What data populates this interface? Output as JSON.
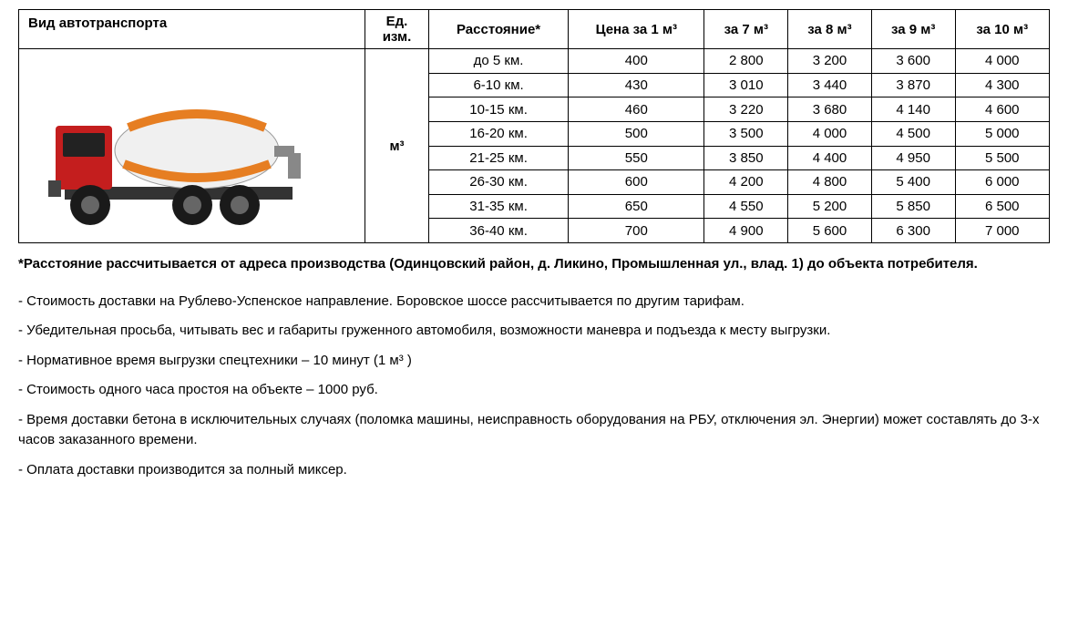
{
  "table": {
    "headers": {
      "vehicle_type": "Вид автотранспорта",
      "unit": "Ед. изм.",
      "distance": "Расстояние*",
      "price_1m3": "Цена за 1 м³",
      "price_7m3": "за 7 м³",
      "price_8m3": "за 8 м³",
      "price_9m3": "за 9 м³",
      "price_10m3": "за 10 м³"
    },
    "unit_value": "м³",
    "rows": [
      {
        "distance": "до 5 км.",
        "p1": "400",
        "p7": "2 800",
        "p8": "3 200",
        "p9": "3 600",
        "p10": "4 000"
      },
      {
        "distance": "6-10 км.",
        "p1": "430",
        "p7": "3 010",
        "p8": "3 440",
        "p9": "3 870",
        "p10": "4 300"
      },
      {
        "distance": "10-15 км.",
        "p1": "460",
        "p7": "3 220",
        "p8": "3 680",
        "p9": "4 140",
        "p10": "4 600"
      },
      {
        "distance": "16-20 км.",
        "p1": "500",
        "p7": "3 500",
        "p8": "4 000",
        "p9": "4 500",
        "p10": "5 000"
      },
      {
        "distance": "21-25 км.",
        "p1": "550",
        "p7": "3 850",
        "p8": "4 400",
        "p9": "4 950",
        "p10": "5 500"
      },
      {
        "distance": "26-30 км.",
        "p1": "600",
        "p7": "4 200",
        "p8": "4 800",
        "p9": "5 400",
        "p10": "6 000"
      },
      {
        "distance": "31-35 км.",
        "p1": "650",
        "p7": "4 550",
        "p8": "5 200",
        "p9": "5 850",
        "p10": "6 500"
      },
      {
        "distance": "36-40 км.",
        "p1": "700",
        "p7": "4 900",
        "p8": "5 600",
        "p9": "6 300",
        "p10": "7 000"
      }
    ]
  },
  "truck": {
    "cab_color": "#c41e1e",
    "mixer_color": "#f0f0f0",
    "stripe_color": "#e67e22",
    "wheel_color": "#1a1a1a",
    "hub_color": "#666666",
    "chassis_color": "#333333"
  },
  "footnote": "*Расстояние рассчитывается от адреса производства (Одинцовский район, д. Ликино, Промышленная ул., влад. 1) до объекта потребителя.",
  "notes": [
    "Стоимость доставки на Рублево-Успенское направление. Боровское шоссе рассчитывается по другим тарифам.",
    "Убедительная просьба, читывать вес и габариты груженного автомобиля, возможности маневра и подъезда к месту выгрузки.",
    "Нормативное время выгрузки спецтехники – 10 минут (1 м³ )",
    "Стоимость одного часа простоя на объекте – 1000 руб.",
    "Время доставки бетона в исключительных случаях (поломка машины,  неисправность оборудования на РБУ, отключения эл. Энергии) может составлять до 3-х часов заказанного  времени.",
    "Оплата доставки производится за полный миксер."
  ]
}
